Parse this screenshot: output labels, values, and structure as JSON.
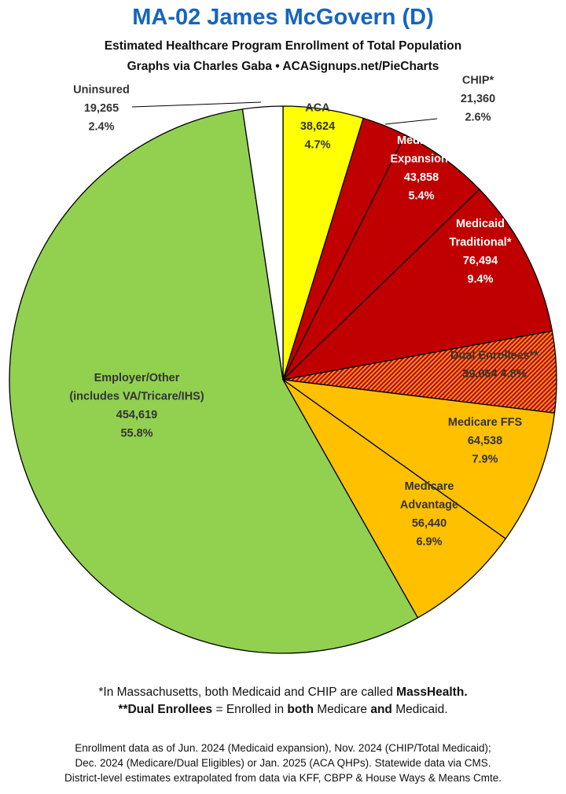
{
  "header": {
    "title": "MA-02 James McGovern (D)",
    "subtitle_line1": "Estimated Healthcare Program Enrollment of Total Population",
    "subtitle_line2": "Graphs via Charles Gaba  •  ACASignups.net/PieCharts"
  },
  "chart_data": {
    "type": "pie",
    "title": "MA-02 James McGovern (D)",
    "start": "12 o'clock, clockwise",
    "slices": [
      {
        "name": "ACA",
        "value": 38624,
        "percent": "4.7%",
        "color": "#ffff00",
        "label_color": "#333333",
        "lines": [
          "ACA",
          "38,624",
          "4.7%"
        ]
      },
      {
        "name": "CHIP*",
        "value": 21360,
        "percent": "2.6%",
        "color": "#c00000",
        "label_color": "#333333",
        "lines": [
          "CHIP*",
          "21,360",
          "2.6%"
        ]
      },
      {
        "name": "Medicaid Expansion*",
        "value": 43858,
        "percent": "5.4%",
        "color": "#c00000",
        "label_color": "#ffffff",
        "lines": [
          "Medicaid",
          "Expansion*",
          "43,858",
          "5.4%"
        ]
      },
      {
        "name": "Medicaid Traditional*",
        "value": 76494,
        "percent": "9.4%",
        "color": "#c00000",
        "label_color": "#ffffff",
        "lines": [
          "Medicaid",
          "Traditional*",
          "76,494",
          "9.4%"
        ]
      },
      {
        "name": "Dual Enrollees**",
        "value": 39064,
        "percent": "4.8%",
        "color": "#c00000",
        "pattern": "hatch-red-orange",
        "label_color": "#333333",
        "lines": [
          "Dual Enrollees**",
          "39,064 4.8%"
        ]
      },
      {
        "name": "Medicare FFS",
        "value": 64538,
        "percent": "7.9%",
        "color": "#ffc000",
        "label_color": "#333333",
        "lines": [
          "Medicare FFS",
          "64,538",
          "7.9%"
        ]
      },
      {
        "name": "Medicare Advantage",
        "value": 56440,
        "percent": "6.9%",
        "color": "#ffc000",
        "label_color": "#333333",
        "lines": [
          "Medicare",
          "Advantage",
          "56,440",
          "6.9%"
        ]
      },
      {
        "name": "Employer/Other (includes VA/Tricare/IHS)",
        "value": 454619,
        "percent": "55.8%",
        "color": "#92d050",
        "label_color": "#333333",
        "lines": [
          "Employer/Other",
          "(includes VA/Tricare/IHS)",
          "454,619",
          "55.8%"
        ]
      },
      {
        "name": "Uninsured",
        "value": 19265,
        "percent": "2.4%",
        "color": "#ffffff",
        "label_color": "#333333",
        "lines": [
          "Uninsured",
          "19,265",
          "2.4%"
        ]
      }
    ]
  },
  "footer": {
    "note1": "*In Massachusetts, both Medicaid and CHIP are called ",
    "note1_bold": "MassHealth.",
    "note2_a": "**Dual Enrollees",
    "note2_b": " = Enrolled in ",
    "note2_c": "both",
    "note2_d": " Medicare ",
    "note2_e": "and",
    "note2_f": " Medicaid.",
    "source1": "Enrollment data as of Jun. 2024 (Medicaid expansion), Nov. 2024 (CHIP/Total Medicaid);",
    "source2": "Dec. 2024 (Medicare/Dual Eligibles) or Jan. 2025 (ACA QHPs). Statewide data via CMS.",
    "source3": "District-level estimates extrapolated from data via KFF, CBPP & House Ways & Means Cmte."
  }
}
